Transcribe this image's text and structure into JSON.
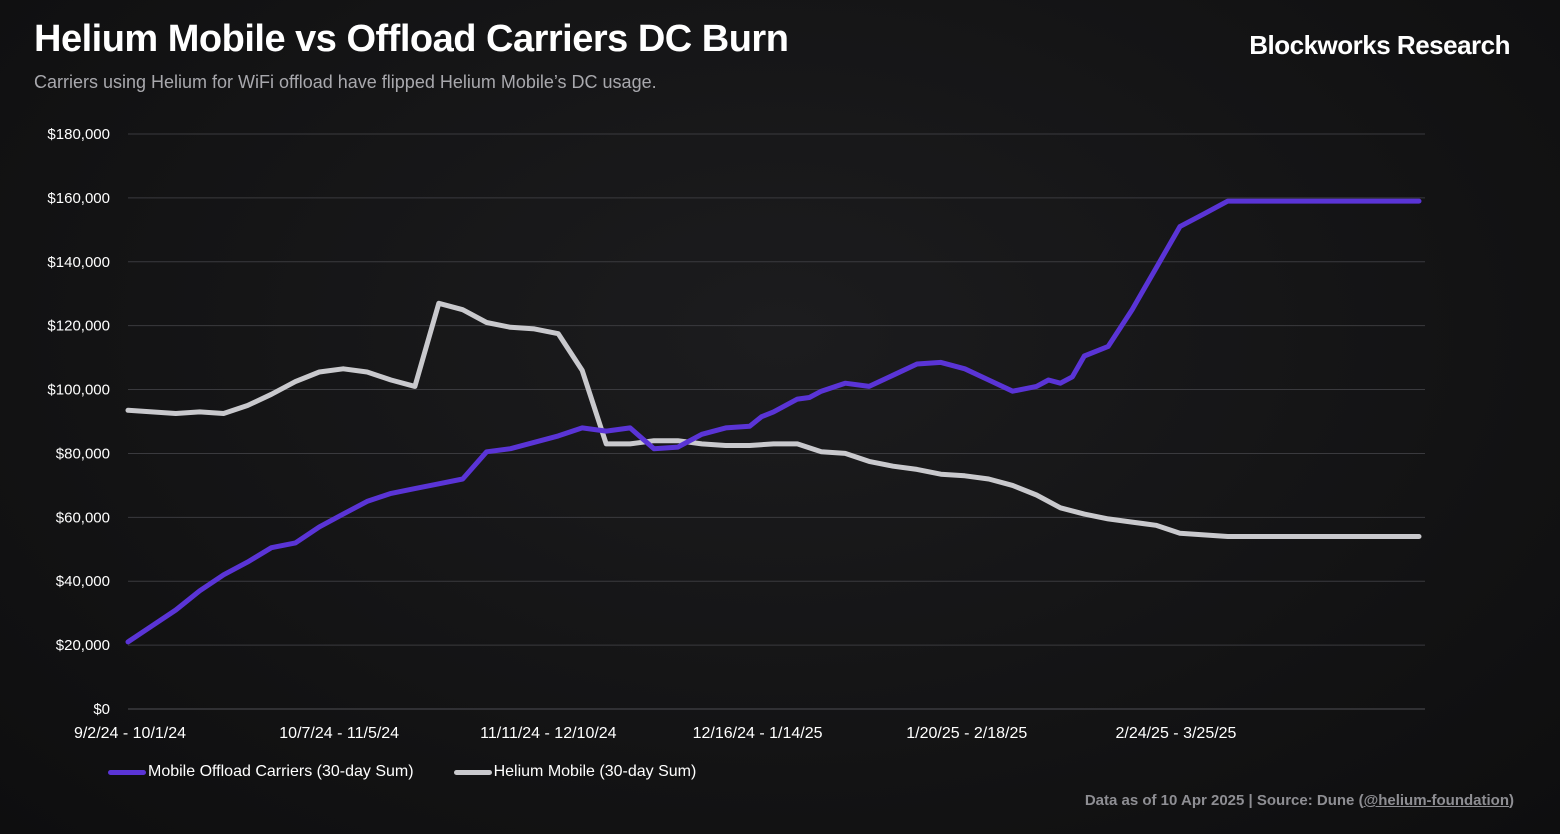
{
  "header": {
    "title": "Helium Mobile vs Offload Carriers DC Burn",
    "subtitle": "Carriers using Helium for WiFi offload have flipped Helium Mobile’s DC usage.",
    "brand": "Blockworks Research"
  },
  "footer": {
    "prefix": "Data as of 10 Apr 2025 | Source: Dune (",
    "link": "@helium-foundation",
    "suffix": ")"
  },
  "colors": {
    "offload": "#5a34d6",
    "helium": "#c9c9cd",
    "grid": "#3a3a3e",
    "axis_text": "#ffffff"
  },
  "chart_data": {
    "type": "line",
    "title": "Helium Mobile vs Offload Carriers DC Burn",
    "ylim": [
      0,
      180000
    ],
    "y_ticks": [
      0,
      20000,
      40000,
      60000,
      80000,
      100000,
      120000,
      140000,
      160000,
      180000
    ],
    "y_tick_labels": [
      "$0",
      "$20,000",
      "$40,000",
      "$60,000",
      "$80,000",
      "$100,000",
      "$120,000",
      "$140,000",
      "$160,000",
      "$180,000"
    ],
    "x_range": [
      0,
      217
    ],
    "x_tick_positions": [
      0,
      35,
      70,
      105,
      140,
      175
    ],
    "x_tick_labels": [
      "9/2/24 - 10/1/24",
      "10/7/24 - 11/5/24",
      "11/11/24 - 12/10/24",
      "12/16/24 - 1/14/25",
      "1/20/25 - 2/18/25",
      "2/24/25 - 3/25/25"
    ],
    "grid": true,
    "legend_position": "bottom-left",
    "series": [
      {
        "name": "Mobile Offload Carriers (30-day Sum)",
        "color": "#5a34d6",
        "x": [
          0,
          4,
          8,
          12,
          16,
          20,
          24,
          28,
          32,
          36,
          40,
          44,
          48,
          52,
          56,
          60,
          64,
          68,
          72,
          76,
          80,
          84,
          88,
          92,
          96,
          100,
          104,
          106,
          108,
          112,
          114,
          116,
          120,
          124,
          128,
          132,
          136,
          140,
          144,
          148,
          152,
          154,
          156,
          158,
          160,
          164,
          168,
          172,
          176,
          180,
          184,
          188,
          192,
          196,
          200,
          202,
          204,
          206,
          208,
          210,
          212,
          214,
          216
        ],
        "values": [
          21000,
          26000,
          31000,
          37000,
          42000,
          46000,
          50500,
          52000,
          57000,
          61000,
          65000,
          67500,
          69000,
          70500,
          72000,
          80500,
          81500,
          83500,
          85500,
          88000,
          87000,
          88000,
          81500,
          82000,
          86000,
          88000,
          88500,
          91500,
          93000,
          97000,
          97500,
          99500,
          102000,
          101000,
          104500,
          108000,
          108500,
          106500,
          103000,
          99500,
          101000,
          103000,
          102000,
          104000,
          110500,
          113500,
          125000,
          138000,
          151000,
          155000,
          159000,
          159000,
          159000,
          159000,
          159000,
          159000,
          159000,
          159000,
          159000,
          159000,
          159000,
          159000,
          159000
        ]
      },
      {
        "name": "Helium Mobile (30-day Sum)",
        "color": "#c9c9cd",
        "x": [
          0,
          4,
          8,
          12,
          16,
          20,
          24,
          28,
          32,
          36,
          40,
          44,
          48,
          52,
          56,
          60,
          64,
          68,
          72,
          76,
          80,
          84,
          88,
          92,
          96,
          100,
          104,
          108,
          112,
          116,
          120,
          124,
          128,
          132,
          136,
          140,
          144,
          148,
          152,
          156,
          160,
          164,
          168,
          172,
          176,
          180,
          184,
          188,
          192,
          196,
          200,
          204,
          208,
          212,
          216
        ],
        "values": [
          93500,
          93000,
          92500,
          93000,
          92500,
          95000,
          98500,
          102500,
          105500,
          106500,
          105500,
          103000,
          101000,
          127000,
          125000,
          121000,
          119500,
          119000,
          117500,
          106000,
          83000,
          83000,
          84000,
          84000,
          83000,
          82500,
          82500,
          83000,
          83000,
          80500,
          80000,
          77500,
          76000,
          75000,
          73500,
          73000,
          72000,
          70000,
          67000,
          63000,
          61000,
          59500,
          58500,
          57500,
          55000,
          54500,
          54000,
          54000,
          54000,
          54000,
          54000,
          54000,
          54000,
          54000,
          54000
        ]
      }
    ]
  }
}
